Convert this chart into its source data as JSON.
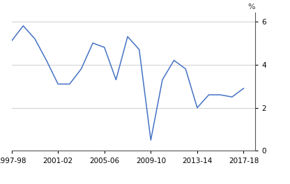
{
  "x_values": [
    1997,
    1998,
    1999,
    2000,
    2001,
    2002,
    2003,
    2004,
    2005,
    2006,
    2007,
    2008,
    2009,
    2010,
    2011,
    2012,
    2013,
    2014,
    2015,
    2016,
    2017
  ],
  "y_values": [
    5.1,
    5.8,
    5.2,
    4.2,
    3.1,
    3.1,
    3.8,
    5.0,
    4.8,
    3.3,
    5.3,
    4.7,
    0.5,
    3.3,
    4.2,
    3.8,
    2.0,
    2.6,
    2.6,
    2.5,
    2.9
  ],
  "line_color": "#4472C4",
  "background_color": "#ffffff",
  "grid_color": "#c8c8c8",
  "ylabel": "%",
  "ylim": [
    0,
    6.4
  ],
  "yticks": [
    0,
    2,
    4,
    6
  ],
  "xlim": [
    1997,
    2018
  ],
  "x_tick_positions": [
    1997,
    2001,
    2005,
    2009,
    2013,
    2017
  ],
  "x_tick_labels": [
    "1997-98",
    "2001-02",
    "2005-06",
    "2009-10",
    "2013-14",
    "2017-18"
  ],
  "tick_fontsize": 7.5,
  "pct_fontsize": 8.0
}
